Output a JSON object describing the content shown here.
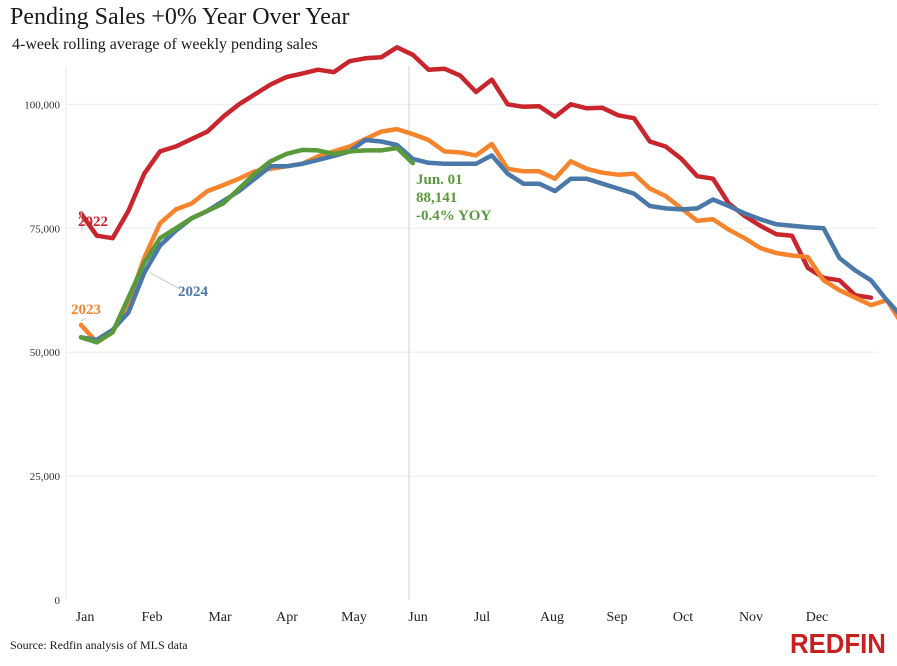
{
  "title": "Pending Sales +0% Year Over Year",
  "subtitle": "4-week rolling average of weekly pending sales",
  "source": "Source: Redfin analysis of MLS data",
  "brand": "REDFIN",
  "chart_data": {
    "type": "line",
    "ylim": [
      0,
      115000
    ],
    "yticks": [
      {
        "value": 0,
        "label": "0"
      },
      {
        "value": 25000,
        "label": "25,000"
      },
      {
        "value": 50000,
        "label": "50,000"
      },
      {
        "value": 75000,
        "label": "75,000"
      },
      {
        "value": 100000,
        "label": "100,000"
      }
    ],
    "x_ticks": [
      "Jan",
      "Feb",
      "Mar",
      "Apr",
      "May",
      "Jun",
      "Jul",
      "Aug",
      "Sep",
      "Oct",
      "Nov",
      "Dec"
    ],
    "xlim": [
      0,
      52
    ],
    "grid": true,
    "reference_line_week": 21.3,
    "annotation": {
      "lines": [
        "Jun. 01",
        "88,141",
        "-0.4% YOY"
      ],
      "color": "#5a9a3c"
    },
    "series": [
      {
        "name": "2022",
        "color": "#c9252c",
        "values": [
          78000,
          73500,
          73000,
          78500,
          86000,
          90500,
          91500,
          93000,
          94500,
          97500,
          100000,
          102000,
          104000,
          105500,
          106200,
          107000,
          106500,
          108700,
          109300,
          109500,
          111500,
          110000,
          107000,
          107200,
          105800,
          102500,
          105000,
          100000,
          99500,
          99600,
          97500,
          100000,
          99200,
          99300,
          97800,
          97200,
          92500,
          91500,
          89000,
          85500,
          85000,
          80000,
          77500,
          75500,
          73800,
          73500,
          67000,
          65000,
          64500,
          61500,
          61000
        ]
      },
      {
        "name": "2023",
        "color": "#f5842c",
        "values": [
          55500,
          52000,
          54000,
          60000,
          69000,
          76000,
          78800,
          80000,
          82500,
          83700,
          85000,
          86500,
          87000,
          87500,
          88000,
          89500,
          90500,
          91500,
          93000,
          94500,
          95000,
          94000,
          92800,
          90500,
          90300,
          89700,
          92000,
          87000,
          86500,
          86500,
          85000,
          88500,
          87000,
          86200,
          85800,
          86000,
          83000,
          81500,
          79000,
          76500,
          76800,
          74700,
          73000,
          71000,
          70000,
          69500,
          69200,
          64500,
          62500,
          61000,
          59500,
          60500,
          55500
        ]
      },
      {
        "name": "2024",
        "color": "#4a78a8",
        "values": [
          53000,
          52500,
          54500,
          58000,
          66000,
          71500,
          74500,
          77000,
          78500,
          80500,
          82500,
          85000,
          87500,
          87500,
          88000,
          88800,
          89600,
          90500,
          92800,
          92500,
          91800,
          89000,
          88200,
          88000,
          88000,
          88000,
          89700,
          86000,
          84000,
          84000,
          82500,
          85000,
          85000,
          84000,
          83000,
          82000,
          79500,
          79000,
          78800,
          79000,
          80800,
          79500,
          78000,
          76800,
          75800,
          75500,
          75200,
          75000,
          69000,
          66500,
          64500,
          60500,
          57000
        ]
      },
      {
        "name": "2024-ytd",
        "color": "#5a9a3c",
        "values": [
          53000,
          52000,
          54000,
          61000,
          68000,
          73000,
          75000,
          77000,
          78500,
          80000,
          83000,
          86000,
          88500,
          90000,
          90800,
          90700,
          90000,
          90500,
          90700,
          90700,
          91200,
          88141
        ]
      }
    ],
    "series_labels": [
      "2022",
      "2023",
      "2024"
    ]
  }
}
